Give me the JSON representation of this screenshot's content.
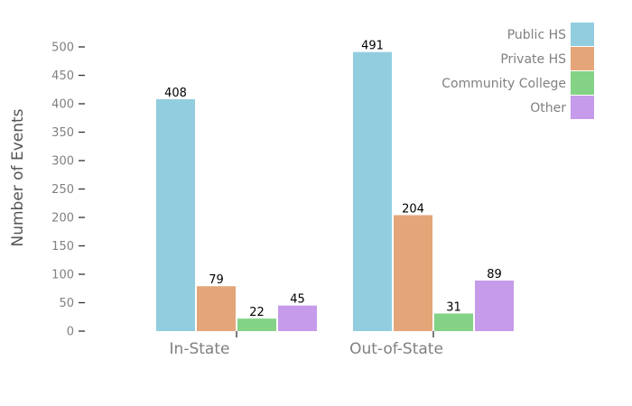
{
  "chart_data": {
    "type": "bar",
    "categories": [
      "In-State",
      "Out-of-State"
    ],
    "series": [
      {
        "name": "Public HS",
        "values": [
          408,
          491
        ],
        "color": "#92cddf"
      },
      {
        "name": "Private HS",
        "values": [
          79,
          204
        ],
        "color": "#e4a579"
      },
      {
        "name": "Community College",
        "values": [
          22,
          31
        ],
        "color": "#83d286"
      },
      {
        "name": "Other",
        "values": [
          45,
          89
        ],
        "color": "#c59bea"
      }
    ],
    "title": "",
    "xlabel": "",
    "ylabel": "Number of Events",
    "ylim": [
      0,
      500
    ],
    "yticks": [
      0,
      50,
      100,
      150,
      200,
      250,
      300,
      350,
      400,
      450,
      500
    ],
    "grid": false,
    "legend_position": "top-right"
  }
}
